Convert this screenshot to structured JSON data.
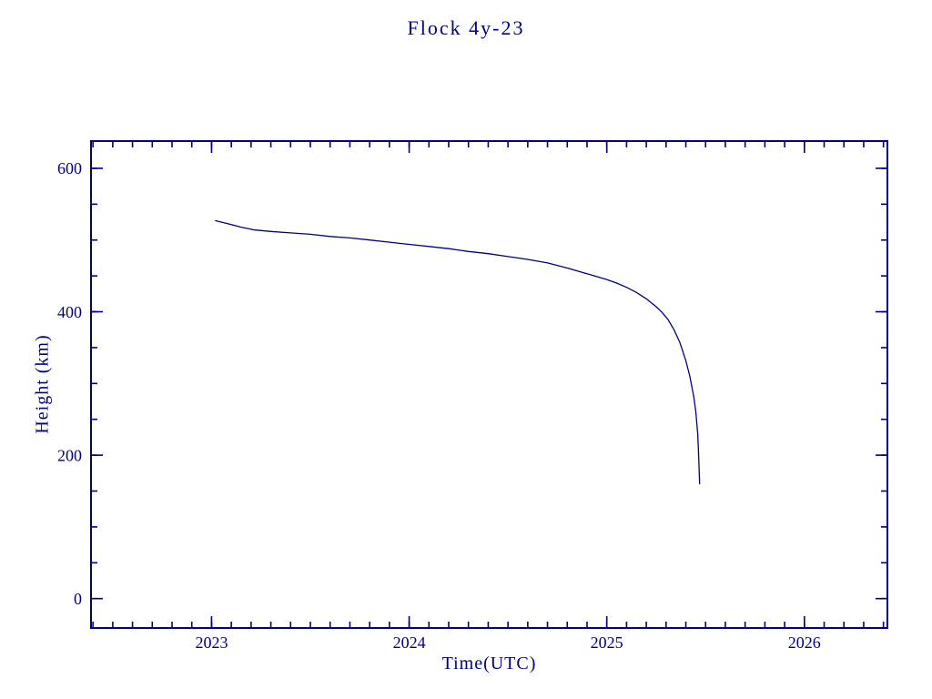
{
  "colors": {
    "line": "#000080",
    "frame": "#000080",
    "text": "#000080",
    "background": "#ffffff"
  },
  "chart_data": {
    "type": "line",
    "title": "Flock 4y-23",
    "xlabel": "Time(UTC)",
    "ylabel": "Height (km)",
    "xlim": [
      2022.39,
      2026.42
    ],
    "ylim": [
      -41,
      638
    ],
    "xticks": [
      2023,
      2024,
      2025,
      2026
    ],
    "yticks": [
      0,
      200,
      400,
      600
    ],
    "x_minor_step": 0.1,
    "y_minor_step": 50,
    "grid": false,
    "legend": false,
    "series": [
      {
        "name": "height",
        "x": [
          2023.02,
          2023.08,
          2023.15,
          2023.22,
          2023.3,
          2023.4,
          2023.5,
          2023.6,
          2023.7,
          2023.8,
          2023.9,
          2024.0,
          2024.1,
          2024.2,
          2024.3,
          2024.4,
          2024.5,
          2024.6,
          2024.7,
          2024.8,
          2024.9,
          2025.0,
          2025.05,
          2025.1,
          2025.15,
          2025.2,
          2025.25,
          2025.28,
          2025.31,
          2025.34,
          2025.37,
          2025.4,
          2025.42,
          2025.44,
          2025.45,
          2025.46,
          2025.465,
          2025.47
        ],
        "y": [
          527,
          523,
          518,
          514,
          512,
          510,
          508,
          505,
          503,
          500,
          497,
          494,
          491,
          488,
          484,
          481,
          477,
          473,
          468,
          461,
          453,
          445,
          440,
          434,
          427,
          418,
          407,
          399,
          389,
          375,
          357,
          332,
          310,
          282,
          262,
          230,
          200,
          160
        ]
      }
    ]
  }
}
